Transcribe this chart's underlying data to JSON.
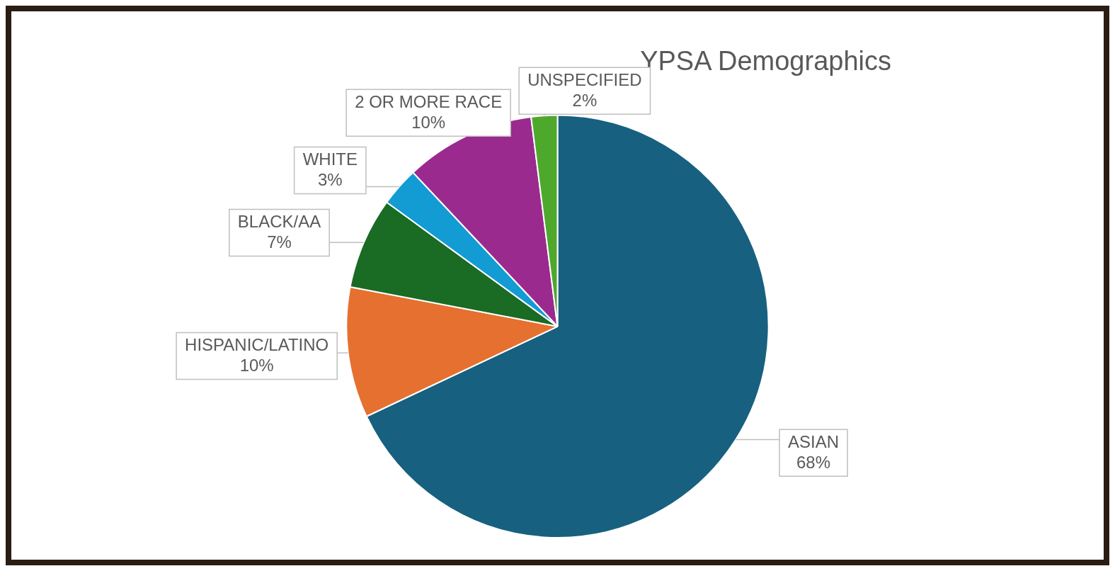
{
  "chart_data": {
    "type": "pie",
    "title": "YPSA Demographics",
    "categories": [
      "ASIAN",
      "HISPANIC/LATINO",
      "BLACK/AA",
      "WHITE",
      "2 OR MORE RACE",
      "UNSPECIFIED"
    ],
    "values": [
      68,
      10,
      7,
      3,
      10,
      2
    ],
    "value_labels": [
      "68%",
      "10%",
      "7%",
      "3%",
      "10%",
      "2%"
    ],
    "colors": [
      "#17607f",
      "#e57030",
      "#1a6b24",
      "#139bd4",
      "#9b2a8f",
      "#4ea82c"
    ],
    "legend": false
  }
}
